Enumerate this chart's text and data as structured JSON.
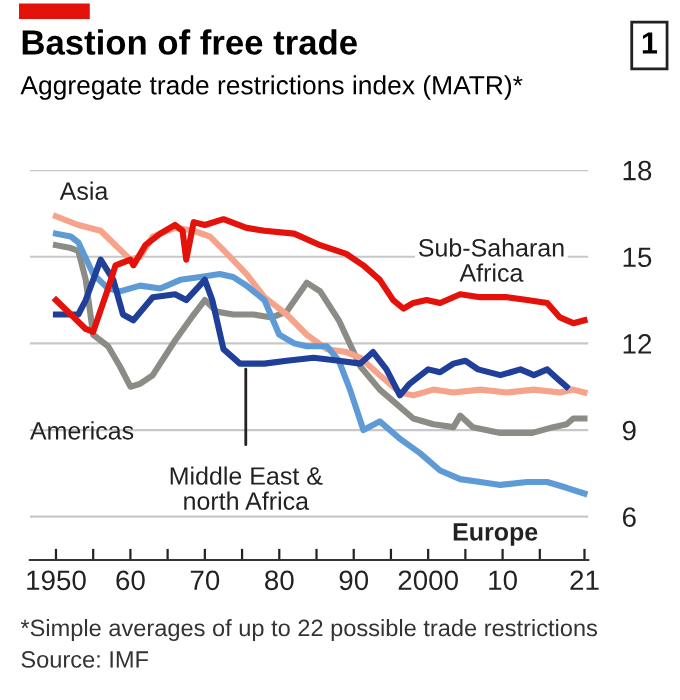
{
  "chart_data": {
    "type": "line",
    "title": "Bastion of free trade",
    "subtitle": "Aggregate trade restrictions index (MATR)*",
    "annotations": [
      "1",
      "*Simple averages of up to 22 possible trade restrictions",
      "Source: IMF"
    ],
    "xlim": [
      1946.5,
      2021.5
    ],
    "ylim": [
      4.5,
      18
    ],
    "xticks": [
      {
        "value": 1950,
        "label": "1950"
      },
      {
        "value": 1955,
        "label": null
      },
      {
        "value": 1960,
        "label": "60"
      },
      {
        "value": 1965,
        "label": null
      },
      {
        "value": 1970,
        "label": "70"
      },
      {
        "value": 1975,
        "label": null
      },
      {
        "value": 1980,
        "label": "80"
      },
      {
        "value": 1985,
        "label": null
      },
      {
        "value": 1990,
        "label": "90"
      },
      {
        "value": 1995,
        "label": null
      },
      {
        "value": 2000,
        "label": "2000"
      },
      {
        "value": 2005,
        "label": null
      },
      {
        "value": 2010,
        "label": "10"
      },
      {
        "value": 2015,
        "label": null
      },
      {
        "value": 2021,
        "label": "21"
      }
    ],
    "yticks": [
      6,
      9,
      12,
      15,
      18
    ],
    "grid": "y",
    "legend": false,
    "line_style": "solid",
    "series": [
      {
        "name": "Americas",
        "color": "#8c8c86",
        "x": [
          1950,
          1952,
          1953,
          1954,
          1955,
          1957,
          1958.6,
          1960,
          1961.3,
          1963,
          1966,
          1968.5,
          1970,
          1971.6,
          1973.8,
          1976.5,
          1979,
          1981,
          1983.7,
          1985.5,
          1988,
          1990.9,
          1993.5,
          1995.3,
          1998,
          2000.7,
          2003.4,
          2004.3,
          2006,
          2009.7,
          2014,
          2016.8,
          2018.6,
          2019.5,
          2021
        ],
        "values": [
          15.4,
          15.3,
          15.2,
          14.2,
          12.3,
          11.9,
          11.2,
          10.5,
          10.6,
          10.9,
          12.1,
          13.0,
          13.5,
          13.1,
          13.0,
          13.0,
          12.9,
          13.1,
          14.1,
          13.8,
          12.8,
          11.2,
          10.4,
          10.0,
          9.4,
          9.2,
          9.1,
          9.5,
          9.1,
          8.9,
          8.9,
          9.1,
          9.2,
          9.4,
          9.4
        ]
      },
      {
        "name": "Asia",
        "color": "#f5a48b",
        "x": [
          1950,
          1953,
          1956,
          1958,
          1960,
          1961.3,
          1963,
          1966,
          1968.5,
          1970.7,
          1973,
          1975.6,
          1978,
          1981,
          1983.7,
          1986.4,
          1989,
          1990.9,
          1993.5,
          1996.2,
          1998,
          2000.7,
          2003.4,
          2007,
          2010.6,
          2014.2,
          2017.7,
          2019.5,
          2021
        ],
        "values": [
          16.4,
          16.1,
          15.9,
          15.4,
          14.9,
          15.0,
          15.7,
          16.0,
          15.9,
          15.7,
          15.1,
          14.4,
          13.6,
          13.0,
          12.3,
          11.8,
          11.7,
          11.5,
          10.9,
          10.3,
          10.2,
          10.4,
          10.3,
          10.4,
          10.3,
          10.4,
          10.3,
          10.4,
          10.3
        ]
      },
      {
        "name": "Europe",
        "color": "#5e9bd6",
        "x": [
          1950,
          1952,
          1953,
          1955,
          1957,
          1958.6,
          1961.3,
          1964,
          1966.7,
          1969.4,
          1972,
          1973.8,
          1975.6,
          1978,
          1980,
          1982,
          1983.7,
          1986.4,
          1988,
          1989.5,
          1991.3,
          1993.5,
          1996.2,
          1998.9,
          2001.6,
          2004.3,
          2007,
          2009.7,
          2013.3,
          2016,
          2018.6,
          2021
        ],
        "values": [
          15.8,
          15.7,
          15.5,
          14.4,
          13.9,
          13.8,
          14.0,
          13.9,
          14.2,
          14.3,
          14.4,
          14.3,
          14.0,
          13.5,
          12.3,
          12.0,
          11.9,
          11.9,
          11.4,
          10.4,
          9.0,
          9.3,
          8.7,
          8.2,
          7.6,
          7.3,
          7.2,
          7.1,
          7.2,
          7.2,
          7.0,
          6.8
        ]
      },
      {
        "name": "Middle East &\nnorth Africa",
        "color": "#1f3f99",
        "x": [
          1950,
          1953,
          1954,
          1956,
          1957.7,
          1959,
          1960.4,
          1963,
          1966,
          1967.5,
          1970,
          1971,
          1972.5,
          1974.7,
          1978,
          1981,
          1984.6,
          1988,
          1990.9,
          1992.6,
          1994.4,
          1996.2,
          1997.5,
          1999,
          2000,
          2001.6,
          2003.4,
          2005,
          2006.7,
          2009.7,
          2012.4,
          2014.2,
          2016,
          2017.7,
          2018.6
        ],
        "values": [
          13.0,
          13.0,
          13.5,
          14.9,
          14.2,
          13.0,
          12.8,
          13.6,
          13.7,
          13.5,
          14.2,
          13.5,
          11.8,
          11.3,
          11.3,
          11.4,
          11.5,
          11.4,
          11.3,
          11.7,
          11.1,
          10.2,
          10.6,
          10.9,
          11.1,
          11.0,
          11.3,
          11.4,
          11.1,
          10.9,
          11.1,
          10.9,
          11.1,
          10.7,
          10.5
        ]
      },
      {
        "name": "Sub-Saharan\nAfrica",
        "color": "#e3120b",
        "x": [
          1950,
          1952,
          1954,
          1955,
          1957,
          1958,
          1960,
          1960.4,
          1962,
          1964,
          1966,
          1967,
          1967.5,
          1968.5,
          1970,
          1972.5,
          1975.6,
          1978,
          1982,
          1985.5,
          1989,
          1991.3,
          1993.5,
          1995.3,
          1996.7,
          1998,
          1999.8,
          2001.6,
          2004.3,
          2007,
          2010.6,
          2013.3,
          2016,
          2017.7,
          2019.5,
          2021
        ],
        "values": [
          13.5,
          13.0,
          12.5,
          12.4,
          13.9,
          14.7,
          14.9,
          14.7,
          15.4,
          15.8,
          16.1,
          15.9,
          14.9,
          16.2,
          16.1,
          16.3,
          16.0,
          15.9,
          15.8,
          15.4,
          15.1,
          14.7,
          14.2,
          13.5,
          13.2,
          13.4,
          13.5,
          13.4,
          13.7,
          13.6,
          13.6,
          13.5,
          13.4,
          12.9,
          12.7,
          12.8
        ]
      }
    ]
  }
}
